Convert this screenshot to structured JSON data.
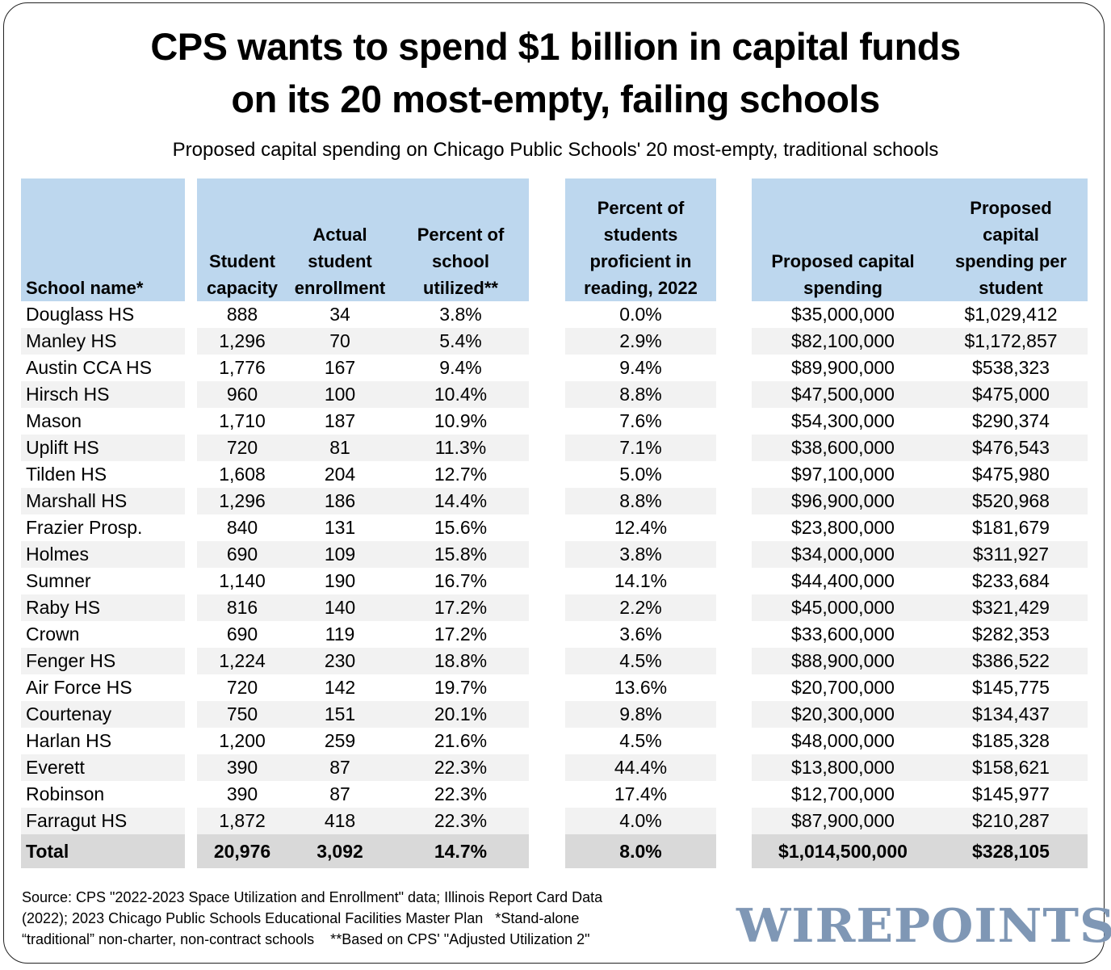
{
  "header": {
    "title_line1": "CPS wants to spend $1 billion in capital funds",
    "title_line2": "on its 20 most-empty, failing schools",
    "subtitle": "Proposed capital spending on Chicago Public Schools' 20 most-empty, traditional schools"
  },
  "chart_data": {
    "type": "table",
    "title": "CPS wants to spend $1 billion in capital funds on its 20 most-empty, failing schools",
    "subtitle": "Proposed capital spending on Chicago Public Schools' 20 most-empty, traditional schools",
    "columns": [
      "School name*",
      "Student capacity",
      "Actual student enrollment",
      "Percent of school utilized**",
      "Percent of students proficient in reading, 2022",
      "Proposed capital spending",
      "Proposed capital spending per student"
    ],
    "header_lines": [
      [
        "School name*"
      ],
      [
        "Student",
        "capacity"
      ],
      [
        "Actual",
        "student",
        "enrollment"
      ],
      [
        "Percent of",
        "school",
        "utilized**"
      ],
      [
        "Percent of",
        "students",
        "proficient in",
        "reading, 2022"
      ],
      [
        "Proposed capital",
        "spending"
      ],
      [
        "Proposed",
        "capital",
        "spending per",
        "student"
      ]
    ],
    "rows": [
      [
        "Douglass HS",
        "888",
        "34",
        "3.8%",
        "0.0%",
        "$35,000,000",
        "$1,029,412"
      ],
      [
        "Manley HS",
        "1,296",
        "70",
        "5.4%",
        "2.9%",
        "$82,100,000",
        "$1,172,857"
      ],
      [
        "Austin CCA HS",
        "1,776",
        "167",
        "9.4%",
        "9.4%",
        "$89,900,000",
        "$538,323"
      ],
      [
        "Hirsch HS",
        "960",
        "100",
        "10.4%",
        "8.8%",
        "$47,500,000",
        "$475,000"
      ],
      [
        "Mason",
        "1,710",
        "187",
        "10.9%",
        "7.6%",
        "$54,300,000",
        "$290,374"
      ],
      [
        "Uplift HS",
        "720",
        "81",
        "11.3%",
        "7.1%",
        "$38,600,000",
        "$476,543"
      ],
      [
        "Tilden HS",
        "1,608",
        "204",
        "12.7%",
        "5.0%",
        "$97,100,000",
        "$475,980"
      ],
      [
        "Marshall HS",
        "1,296",
        "186",
        "14.4%",
        "8.8%",
        "$96,900,000",
        "$520,968"
      ],
      [
        "Frazier Prosp.",
        "840",
        "131",
        "15.6%",
        "12.4%",
        "$23,800,000",
        "$181,679"
      ],
      [
        "Holmes",
        "690",
        "109",
        "15.8%",
        "3.8%",
        "$34,000,000",
        "$311,927"
      ],
      [
        "Sumner",
        "1,140",
        "190",
        "16.7%",
        "14.1%",
        "$44,400,000",
        "$233,684"
      ],
      [
        "Raby HS",
        "816",
        "140",
        "17.2%",
        "2.2%",
        "$45,000,000",
        "$321,429"
      ],
      [
        "Crown",
        "690",
        "119",
        "17.2%",
        "3.6%",
        "$33,600,000",
        "$282,353"
      ],
      [
        "Fenger HS",
        "1,224",
        "230",
        "18.8%",
        "4.5%",
        "$88,900,000",
        "$386,522"
      ],
      [
        "Air Force HS",
        "720",
        "142",
        "19.7%",
        "13.6%",
        "$20,700,000",
        "$145,775"
      ],
      [
        "Courtenay",
        "750",
        "151",
        "20.1%",
        "9.8%",
        "$20,300,000",
        "$134,437"
      ],
      [
        "Harlan HS",
        "1,200",
        "259",
        "21.6%",
        "4.5%",
        "$48,000,000",
        "$185,328"
      ],
      [
        "Everett",
        "390",
        "87",
        "22.3%",
        "44.4%",
        "$13,800,000",
        "$158,621"
      ],
      [
        "Robinson",
        "390",
        "87",
        "22.3%",
        "17.4%",
        "$12,700,000",
        "$145,977"
      ],
      [
        "Farragut HS",
        "1,872",
        "418",
        "22.3%",
        "4.0%",
        "$87,900,000",
        "$210,287"
      ]
    ],
    "total": [
      "Total",
      "20,976",
      "3,092",
      "14.7%",
      "8.0%",
      "$1,014,500,000",
      "$328,105"
    ]
  },
  "footer": {
    "source_line1": "Source: CPS \"2022-2023 Space Utilization and Enrollment\" data; Illinois Report Card Data",
    "source_line2": "(2022); 2023 Chicago Public Schools Educational Facilities Master Plan   *Stand-alone",
    "source_line3": "“traditional” non-charter, non-contract schools    **Based on CPS' \"Adjusted Utilization 2\"",
    "logo": "WIREPOINTS"
  },
  "colors": {
    "header_fill": "#bdd7ee",
    "alt_row_fill": "#f2f2f2",
    "total_row_fill": "#d9d9d9",
    "logo": "#7f97b5"
  }
}
